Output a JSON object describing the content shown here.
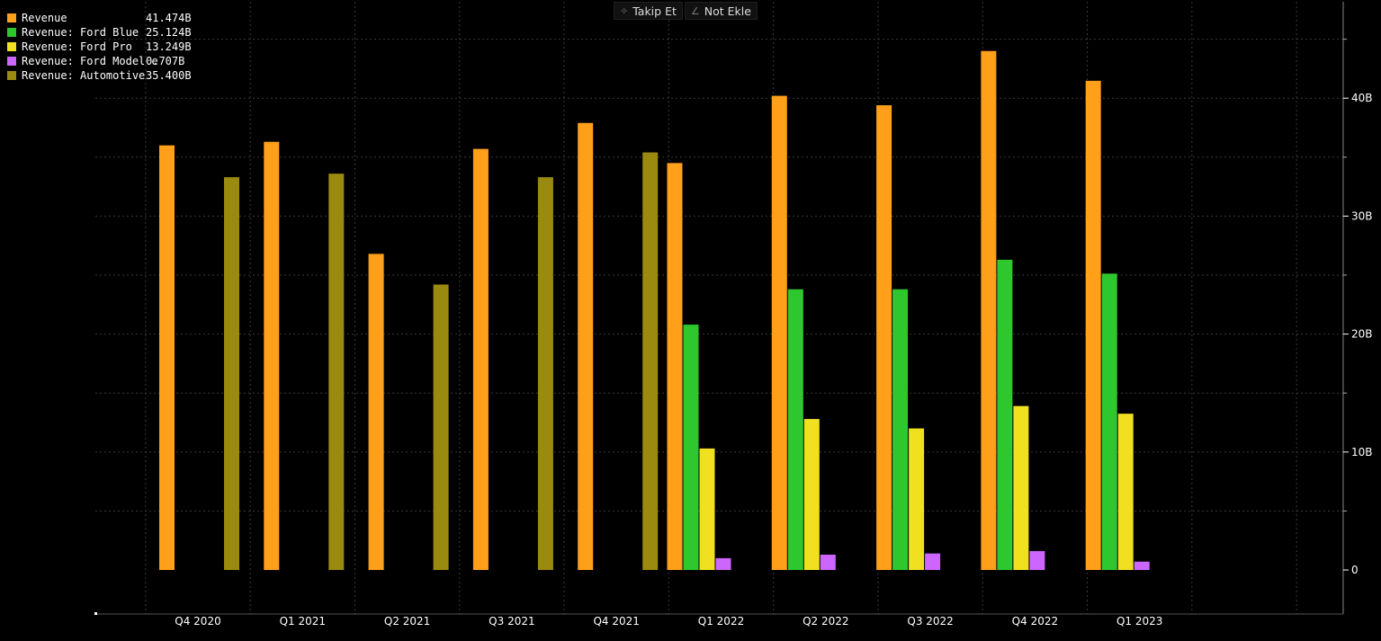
{
  "toolbar": {
    "follow_label": "Takip Et",
    "note_label": "Not Ekle"
  },
  "colors": {
    "background": "#000000",
    "grid": "#3a3a3a"
  },
  "legend": [
    {
      "name": "Revenue",
      "value": "41.474B",
      "color": "#ff9f1a"
    },
    {
      "name": "Revenue: Ford Blue",
      "value": "25.124B",
      "color": "#2ec82e"
    },
    {
      "name": "Revenue: Ford Pro",
      "value": "13.249B",
      "color": "#f0e020"
    },
    {
      "name": "Revenue: Ford Model e",
      "value": "0.707B",
      "color": "#cc66ff"
    },
    {
      "name": "Revenue: Automotive",
      "value": "35.400B",
      "color": "#9a8a10"
    }
  ],
  "chart_data": {
    "type": "bar",
    "categories": [
      "Q4 2020",
      "Q1 2021",
      "Q2 2021",
      "Q3 2021",
      "Q4 2021",
      "Q1 2022",
      "Q2 2022",
      "Q3 2022",
      "Q4 2022",
      "Q1 2023"
    ],
    "series": [
      {
        "name": "Revenue",
        "color": "#ff9f1a",
        "values": [
          36.0,
          36.3,
          26.8,
          35.7,
          37.9,
          34.5,
          40.2,
          39.4,
          44.0,
          41.474
        ]
      },
      {
        "name": "Revenue: Ford Blue",
        "color": "#2ec82e",
        "values": [
          null,
          null,
          null,
          null,
          null,
          20.8,
          23.8,
          23.8,
          26.3,
          25.124
        ]
      },
      {
        "name": "Revenue: Ford Pro",
        "color": "#f0e020",
        "values": [
          null,
          null,
          null,
          null,
          null,
          10.3,
          12.8,
          12.0,
          13.9,
          13.249
        ]
      },
      {
        "name": "Revenue: Ford Model e",
        "color": "#cc66ff",
        "values": [
          null,
          null,
          null,
          null,
          null,
          1.0,
          1.3,
          1.4,
          1.6,
          0.707
        ]
      },
      {
        "name": "Revenue: Automotive",
        "color": "#9a8a10",
        "values": [
          33.3,
          33.6,
          24.2,
          33.3,
          35.4,
          null,
          null,
          null,
          null,
          null
        ]
      }
    ],
    "y_ticks": [
      "0",
      "10B",
      "20B",
      "30B",
      "40B"
    ],
    "y_tick_values": [
      0,
      10,
      20,
      30,
      40
    ],
    "ylim": [
      -3.7,
      47.5
    ],
    "grid": true,
    "legend_position": "top-left",
    "y_axis_position": "right"
  }
}
